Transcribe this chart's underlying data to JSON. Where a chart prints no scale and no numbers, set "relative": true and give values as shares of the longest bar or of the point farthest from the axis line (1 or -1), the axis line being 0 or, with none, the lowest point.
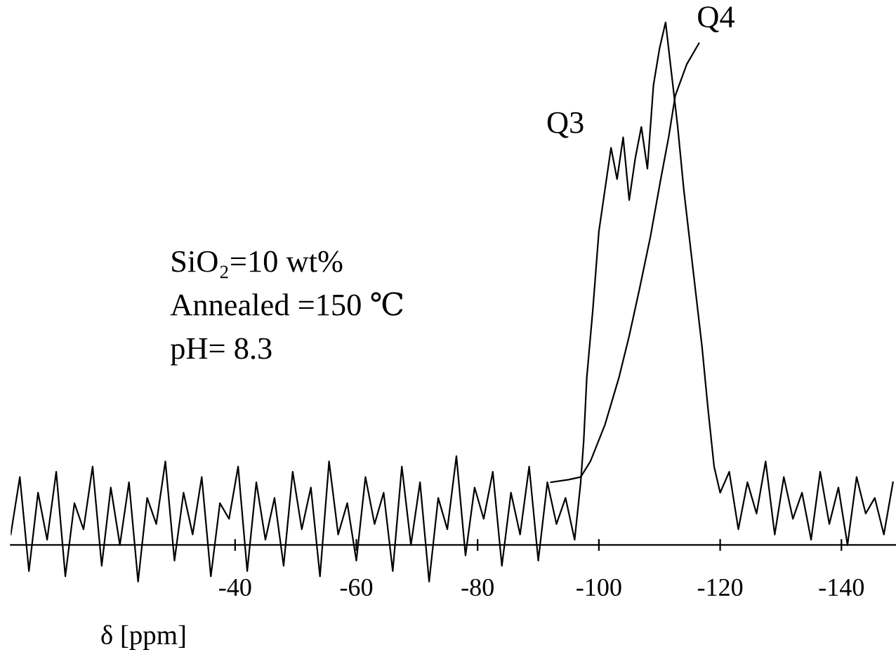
{
  "chart_data": {
    "type": "line",
    "relative": true,
    "xlabel": "δ [ppm]",
    "xlim": [
      -3,
      -149
    ],
    "xticks": [
      -40,
      -60,
      -80,
      -100,
      -120,
      -140
    ],
    "grid": false,
    "legend": false,
    "marker": "none",
    "line_style": "solid",
    "annotations": [
      "Q3",
      "Q4",
      "SiO₂=10 wt%",
      "Annealed =150 ℃",
      "pH= 8.3"
    ],
    "series": [
      {
        "color": "#000000",
        "x": [
          -3,
          -4.5,
          -6,
          -7.5,
          -9,
          -10.5,
          -12,
          -13.5,
          -15,
          -16.5,
          -18,
          -19.5,
          -21,
          -22.5,
          -24,
          -25.5,
          -27,
          -28.5,
          -30,
          -31.5,
          -33,
          -34.5,
          -36,
          -37.5,
          -39,
          -40.5,
          -42,
          -43.5,
          -45,
          -46.5,
          -48,
          -49.5,
          -51,
          -52.5,
          -54,
          -55.5,
          -57,
          -58.5,
          -60,
          -61.5,
          -63,
          -64.5,
          -66,
          -67.5,
          -69,
          -70.5,
          -72,
          -73.5,
          -75,
          -76.5,
          -78,
          -79.5,
          -81,
          -82.5,
          -84,
          -85.5,
          -87,
          -88.5,
          -90,
          -91.5,
          -93,
          -94.5,
          -96,
          -97,
          -97.5,
          -98,
          -99,
          -100,
          -101,
          -102,
          -103,
          -104,
          -105,
          -106,
          -107,
          -108,
          -109,
          -110,
          -111,
          -112,
          -113,
          -114,
          -115,
          -116,
          -117,
          -118,
          -119,
          -120,
          -121.5,
          -123,
          -124.5,
          -126,
          -127.5,
          -129,
          -130.5,
          -132,
          -133.5,
          -135,
          -136.5,
          -138,
          -139.5,
          -141,
          -142.5,
          -144,
          -145.5,
          -147,
          -148.5
        ],
        "values": [
          0.02,
          0.13,
          -0.05,
          0.1,
          0.01,
          0.14,
          -0.06,
          0.08,
          0.03,
          0.15,
          -0.04,
          0.11,
          0.0,
          0.12,
          -0.07,
          0.09,
          0.04,
          0.16,
          -0.03,
          0.1,
          0.02,
          0.13,
          -0.06,
          0.08,
          0.05,
          0.15,
          -0.05,
          0.12,
          0.01,
          0.09,
          -0.04,
          0.14,
          0.03,
          0.11,
          -0.06,
          0.16,
          0.02,
          0.08,
          -0.03,
          0.13,
          0.04,
          0.1,
          -0.05,
          0.15,
          0.0,
          0.12,
          -0.07,
          0.09,
          0.03,
          0.17,
          -0.02,
          0.11,
          0.05,
          0.14,
          -0.04,
          0.1,
          0.02,
          0.15,
          -0.03,
          0.12,
          0.04,
          0.09,
          0.01,
          0.12,
          0.2,
          0.32,
          0.45,
          0.6,
          0.68,
          0.76,
          0.7,
          0.78,
          0.66,
          0.74,
          0.8,
          0.72,
          0.88,
          0.95,
          1.0,
          0.9,
          0.8,
          0.68,
          0.58,
          0.48,
          0.38,
          0.26,
          0.15,
          0.1,
          0.14,
          0.03,
          0.12,
          0.06,
          0.16,
          0.02,
          0.13,
          0.05,
          0.1,
          0.01,
          0.14,
          0.04,
          0.11,
          0.0,
          0.13,
          0.06,
          0.09,
          0.02,
          0.12
        ]
      },
      {
        "color": "#000000",
        "x": [
          -92.1,
          -95,
          -97,
          -98.6,
          -101,
          -103.3,
          -105,
          -106.7,
          -108.5,
          -110.2,
          -111.5,
          -112.6,
          -114.5,
          -116.5
        ],
        "values": [
          0.12,
          0.125,
          0.13,
          0.16,
          0.23,
          0.32,
          0.4,
          0.49,
          0.59,
          0.7,
          0.78,
          0.86,
          0.92,
          0.96
        ]
      }
    ]
  }
}
